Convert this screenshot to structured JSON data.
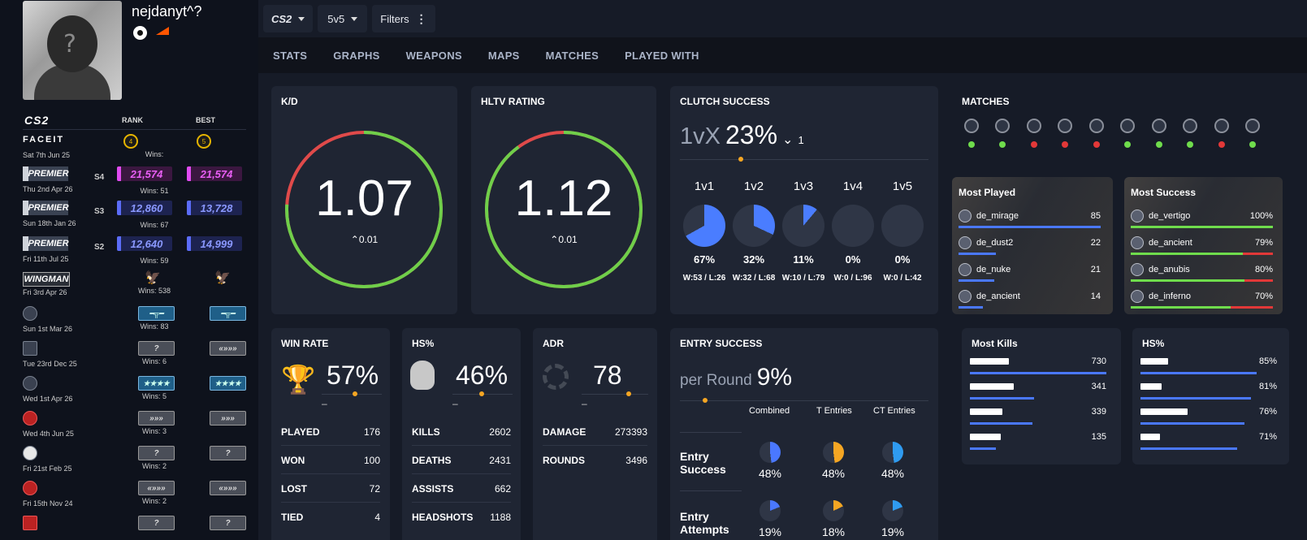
{
  "profile": {
    "username": "nejdanyt^?"
  },
  "ranks": {
    "game_logo": "CS2",
    "col_rank": "RANK",
    "col_best": "BEST",
    "rows": [
      {
        "type": "faceit",
        "logo": "FACEIT",
        "date": "Sat 7th Jun 25",
        "rank": "4",
        "best": "5",
        "wins": "Wins:"
      },
      {
        "type": "premier",
        "logo": "PREMIER",
        "season": "S4",
        "date": "Thu 2nd Apr 26",
        "rank": "21,574",
        "best": "21,574",
        "wins": "Wins: 51",
        "color": "pink"
      },
      {
        "type": "premier",
        "logo": "PREMIER",
        "season": "S3",
        "date": "Sun 18th Jan 26",
        "rank": "12,860",
        "best": "13,728",
        "wins": "Wins: 67",
        "color": "blue"
      },
      {
        "type": "premier",
        "logo": "PREMIER",
        "season": "S2",
        "date": "Fri 11th Jul 25",
        "rank": "12,640",
        "best": "14,999",
        "wins": "Wins: 59",
        "color": "blue"
      },
      {
        "type": "wingman",
        "logo": "WINGMAN",
        "date": "Fri 3rd Apr 26",
        "rank": "eagle",
        "best": "eagle",
        "wins": "Wins: 538"
      },
      {
        "type": "map",
        "date": "Sun 1st Mar 26",
        "rank": "rifle",
        "best": "rifle",
        "wins": "Wins: 83"
      },
      {
        "type": "map",
        "date": "Tue 23rd Dec 25",
        "rank": "?",
        "best": "chevrons",
        "wins": "Wins: 6"
      },
      {
        "type": "map",
        "date": "Wed 1st Apr 26",
        "rank": "4 stars",
        "best": "4 stars",
        "wins": "Wins: 5"
      },
      {
        "type": "map",
        "date": "Wed 4th Jun 25",
        "rank": "3 chevrons",
        "best": "3 chevrons",
        "wins": "Wins: 3"
      },
      {
        "type": "map",
        "date": "Fri 21st Feb 25",
        "rank": "?",
        "best": "?",
        "wins": "Wins: 2"
      },
      {
        "type": "map",
        "date": "Fri 15th Nov 24",
        "rank": "chevrons",
        "best": "chevrons",
        "wins": "Wins: 2"
      },
      {
        "type": "map",
        "date": "",
        "rank": "?",
        "best": "?",
        "wins": ""
      }
    ]
  },
  "topbar": {
    "game": "CS2",
    "mode": "5v5",
    "filters": "Filters"
  },
  "tabs": [
    "STATS",
    "GRAPHS",
    "WEAPONS",
    "MAPS",
    "MATCHES",
    "PLAYED WITH"
  ],
  "kd": {
    "title": "K/D",
    "value": "1.07",
    "diff": "0.01",
    "ratio": 0.76
  },
  "hltv": {
    "title": "HLTV RATING",
    "value": "1.12",
    "diff": "0.01",
    "ratio": 0.9
  },
  "clutch": {
    "title": "CLUTCH SUCCESS",
    "prefix": "1vX",
    "value": "23%",
    "diff": "1",
    "items": [
      {
        "label": "1v1",
        "pct": "67%",
        "frac": 0.67,
        "wl": "W:53 / L:26"
      },
      {
        "label": "1v2",
        "pct": "32%",
        "frac": 0.32,
        "wl": "W:32 / L:68"
      },
      {
        "label": "1v3",
        "pct": "11%",
        "frac": 0.11,
        "wl": "W:10 / L:79"
      },
      {
        "label": "1v4",
        "pct": "0%",
        "frac": 0,
        "wl": "W:0 / L:96"
      },
      {
        "label": "1v5",
        "pct": "0%",
        "frac": 0,
        "wl": "W:0 / L:42"
      }
    ]
  },
  "matches": {
    "title": "MATCHES",
    "results": [
      "win",
      "win",
      "loss",
      "loss",
      "loss",
      "win",
      "win",
      "win",
      "loss",
      "win"
    ]
  },
  "most_played": {
    "title": "Most Played",
    "rows": [
      {
        "map": "de_mirage",
        "value": "85",
        "frac": 1.0
      },
      {
        "map": "de_dust2",
        "value": "22",
        "frac": 0.26
      },
      {
        "map": "de_nuke",
        "value": "21",
        "frac": 0.25
      },
      {
        "map": "de_ancient",
        "value": "14",
        "frac": 0.17
      }
    ]
  },
  "most_success": {
    "title": "Most Success",
    "rows": [
      {
        "map": "de_vertigo",
        "value": "100%",
        "frac": 1.0
      },
      {
        "map": "de_ancient",
        "value": "79%",
        "frac": 0.79
      },
      {
        "map": "de_anubis",
        "value": "80%",
        "frac": 0.8
      },
      {
        "map": "de_inferno",
        "value": "70%",
        "frac": 0.7
      }
    ]
  },
  "win_rate": {
    "title": "WIN RATE",
    "value": "57%",
    "dash": "–",
    "rows": [
      {
        "k": "PLAYED",
        "v": "176"
      },
      {
        "k": "WON",
        "v": "100"
      },
      {
        "k": "LOST",
        "v": "72"
      },
      {
        "k": "TIED",
        "v": "4"
      }
    ]
  },
  "hs": {
    "title": "HS%",
    "value": "46%",
    "dash": "–",
    "rows": [
      {
        "k": "KILLS",
        "v": "2602"
      },
      {
        "k": "DEATHS",
        "v": "2431"
      },
      {
        "k": "ASSISTS",
        "v": "662"
      },
      {
        "k": "HEADSHOTS",
        "v": "1188"
      }
    ]
  },
  "adr": {
    "title": "ADR",
    "value": "78",
    "dash": "–",
    "rows": [
      {
        "k": "DAMAGE",
        "v": "273393"
      },
      {
        "k": "ROUNDS",
        "v": "3496"
      }
    ]
  },
  "entry": {
    "title": "ENTRY SUCCESS",
    "prefix": "per Round",
    "value": "9%",
    "cols": [
      "Combined",
      "T Entries",
      "CT Entries"
    ],
    "success_label_1": "Entry",
    "success_label_2": "Success",
    "success": [
      {
        "pct": "48%",
        "frac": 0.48
      },
      {
        "pct": "48%",
        "frac": 0.48
      },
      {
        "pct": "48%",
        "frac": 0.48
      }
    ],
    "attempts_label_1": "Entry",
    "attempts_label_2": "Attempts",
    "attempts": [
      {
        "pct": "19%",
        "frac": 0.19
      },
      {
        "pct": "18%",
        "frac": 0.18
      },
      {
        "pct": "19%",
        "frac": 0.19
      }
    ]
  },
  "most_kills": {
    "title": "Most Kills",
    "rows": [
      {
        "value": "730",
        "frac": 1.0
      },
      {
        "value": "341",
        "frac": 0.47
      },
      {
        "value": "339",
        "frac": 0.46
      },
      {
        "value": "135",
        "frac": 0.19
      }
    ]
  },
  "hs_weapons": {
    "title": "HS%",
    "rows": [
      {
        "value": "85%",
        "frac": 0.85
      },
      {
        "value": "81%",
        "frac": 0.81
      },
      {
        "value": "76%",
        "frac": 0.76
      },
      {
        "value": "71%",
        "frac": 0.71
      }
    ]
  },
  "colors": {
    "accent_blue": "#4a78ff",
    "win": "#6fdc4c",
    "loss": "#e23838",
    "orange": "#f5a623",
    "t_side": "#f5a623",
    "ct_side": "#2f9bf0"
  }
}
